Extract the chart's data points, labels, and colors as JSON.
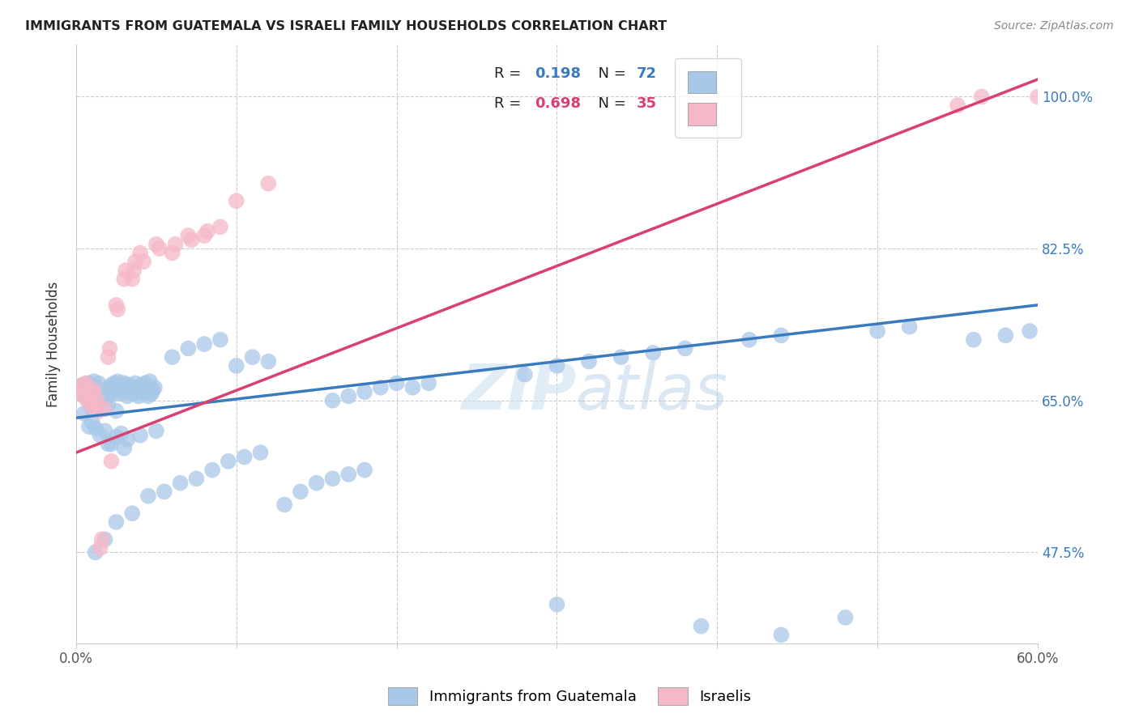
{
  "title": "IMMIGRANTS FROM GUATEMALA VS ISRAELI FAMILY HOUSEHOLDS CORRELATION CHART",
  "source": "Source: ZipAtlas.com",
  "ylabel": "Family Households",
  "ytick_labels": [
    "47.5%",
    "65.0%",
    "82.5%",
    "100.0%"
  ],
  "ytick_values": [
    0.475,
    0.65,
    0.825,
    1.0
  ],
  "xlim": [
    0.0,
    0.6
  ],
  "ylim": [
    0.37,
    1.06
  ],
  "watermark": "ZIPatlas",
  "blue_color": "#a8c8e8",
  "pink_color": "#f5b8c8",
  "blue_line_color": "#3a7abf",
  "pink_line_color": "#d94070",
  "blue_line_x": [
    0.0,
    0.6
  ],
  "blue_line_y": [
    0.63,
    0.76
  ],
  "pink_line_x": [
    0.0,
    0.6
  ],
  "pink_line_y": [
    0.59,
    1.02
  ],
  "blue_scatter": [
    [
      0.003,
      0.66
    ],
    [
      0.004,
      0.668
    ],
    [
      0.005,
      0.655
    ],
    [
      0.006,
      0.665
    ],
    [
      0.007,
      0.658
    ],
    [
      0.008,
      0.67
    ],
    [
      0.009,
      0.645
    ],
    [
      0.01,
      0.668
    ],
    [
      0.011,
      0.672
    ],
    [
      0.012,
      0.66
    ],
    [
      0.013,
      0.655
    ],
    [
      0.014,
      0.67
    ],
    [
      0.015,
      0.648
    ],
    [
      0.016,
      0.662
    ],
    [
      0.017,
      0.658
    ],
    [
      0.018,
      0.65
    ],
    [
      0.019,
      0.66
    ],
    [
      0.02,
      0.655
    ],
    [
      0.021,
      0.665
    ],
    [
      0.022,
      0.668
    ],
    [
      0.023,
      0.66
    ],
    [
      0.024,
      0.67
    ],
    [
      0.025,
      0.665
    ],
    [
      0.026,
      0.672
    ],
    [
      0.027,
      0.658
    ],
    [
      0.028,
      0.66
    ],
    [
      0.029,
      0.668
    ],
    [
      0.03,
      0.67
    ],
    [
      0.031,
      0.66
    ],
    [
      0.032,
      0.655
    ],
    [
      0.033,
      0.668
    ],
    [
      0.034,
      0.662
    ],
    [
      0.035,
      0.665
    ],
    [
      0.036,
      0.658
    ],
    [
      0.037,
      0.67
    ],
    [
      0.038,
      0.66
    ],
    [
      0.039,
      0.655
    ],
    [
      0.04,
      0.665
    ],
    [
      0.041,
      0.668
    ],
    [
      0.042,
      0.66
    ],
    [
      0.043,
      0.67
    ],
    [
      0.044,
      0.66
    ],
    [
      0.045,
      0.655
    ],
    [
      0.046,
      0.672
    ],
    [
      0.047,
      0.658
    ],
    [
      0.048,
      0.662
    ],
    [
      0.049,
      0.665
    ],
    [
      0.005,
      0.635
    ],
    [
      0.008,
      0.62
    ],
    [
      0.01,
      0.625
    ],
    [
      0.012,
      0.618
    ],
    [
      0.015,
      0.61
    ],
    [
      0.018,
      0.615
    ],
    [
      0.022,
      0.6
    ],
    [
      0.025,
      0.608
    ],
    [
      0.028,
      0.612
    ],
    [
      0.032,
      0.605
    ],
    [
      0.01,
      0.64
    ],
    [
      0.015,
      0.65
    ],
    [
      0.02,
      0.645
    ],
    [
      0.025,
      0.638
    ],
    [
      0.06,
      0.7
    ],
    [
      0.07,
      0.71
    ],
    [
      0.08,
      0.715
    ],
    [
      0.09,
      0.72
    ],
    [
      0.1,
      0.69
    ],
    [
      0.11,
      0.7
    ],
    [
      0.12,
      0.695
    ],
    [
      0.012,
      0.475
    ],
    [
      0.018,
      0.49
    ],
    [
      0.025,
      0.51
    ],
    [
      0.035,
      0.52
    ],
    [
      0.045,
      0.54
    ],
    [
      0.055,
      0.545
    ],
    [
      0.065,
      0.555
    ],
    [
      0.075,
      0.56
    ],
    [
      0.085,
      0.57
    ],
    [
      0.095,
      0.58
    ],
    [
      0.105,
      0.585
    ],
    [
      0.115,
      0.59
    ],
    [
      0.02,
      0.6
    ],
    [
      0.03,
      0.595
    ],
    [
      0.04,
      0.61
    ],
    [
      0.05,
      0.615
    ],
    [
      0.16,
      0.65
    ],
    [
      0.17,
      0.655
    ],
    [
      0.18,
      0.66
    ],
    [
      0.19,
      0.665
    ],
    [
      0.2,
      0.67
    ],
    [
      0.21,
      0.665
    ],
    [
      0.22,
      0.67
    ],
    [
      0.13,
      0.53
    ],
    [
      0.14,
      0.545
    ],
    [
      0.15,
      0.555
    ],
    [
      0.16,
      0.56
    ],
    [
      0.17,
      0.565
    ],
    [
      0.18,
      0.57
    ],
    [
      0.28,
      0.68
    ],
    [
      0.3,
      0.69
    ],
    [
      0.32,
      0.695
    ],
    [
      0.34,
      0.7
    ],
    [
      0.36,
      0.705
    ],
    [
      0.38,
      0.71
    ],
    [
      0.42,
      0.72
    ],
    [
      0.44,
      0.725
    ],
    [
      0.5,
      0.73
    ],
    [
      0.52,
      0.735
    ],
    [
      0.56,
      0.72
    ],
    [
      0.58,
      0.725
    ],
    [
      0.595,
      0.73
    ],
    [
      0.39,
      0.39
    ],
    [
      0.44,
      0.38
    ],
    [
      0.48,
      0.4
    ],
    [
      0.3,
      0.415
    ]
  ],
  "pink_scatter": [
    [
      0.003,
      0.66
    ],
    [
      0.004,
      0.668
    ],
    [
      0.005,
      0.655
    ],
    [
      0.006,
      0.67
    ],
    [
      0.007,
      0.65
    ],
    [
      0.008,
      0.66
    ],
    [
      0.009,
      0.645
    ],
    [
      0.01,
      0.658
    ],
    [
      0.011,
      0.662
    ],
    [
      0.012,
      0.64
    ],
    [
      0.013,
      0.65
    ],
    [
      0.014,
      0.638
    ],
    [
      0.015,
      0.48
    ],
    [
      0.016,
      0.49
    ],
    [
      0.02,
      0.7
    ],
    [
      0.021,
      0.71
    ],
    [
      0.025,
      0.76
    ],
    [
      0.026,
      0.755
    ],
    [
      0.03,
      0.79
    ],
    [
      0.031,
      0.8
    ],
    [
      0.035,
      0.79
    ],
    [
      0.036,
      0.8
    ],
    [
      0.037,
      0.81
    ],
    [
      0.04,
      0.82
    ],
    [
      0.042,
      0.81
    ],
    [
      0.05,
      0.83
    ],
    [
      0.052,
      0.825
    ],
    [
      0.06,
      0.82
    ],
    [
      0.062,
      0.83
    ],
    [
      0.07,
      0.84
    ],
    [
      0.072,
      0.835
    ],
    [
      0.08,
      0.84
    ],
    [
      0.082,
      0.845
    ],
    [
      0.09,
      0.85
    ],
    [
      0.1,
      0.88
    ],
    [
      0.12,
      0.9
    ],
    [
      0.55,
      0.99
    ],
    [
      0.565,
      1.0
    ],
    [
      0.6,
      1.0
    ],
    [
      0.61,
      1.0
    ],
    [
      0.018,
      0.64
    ],
    [
      0.022,
      0.58
    ]
  ]
}
